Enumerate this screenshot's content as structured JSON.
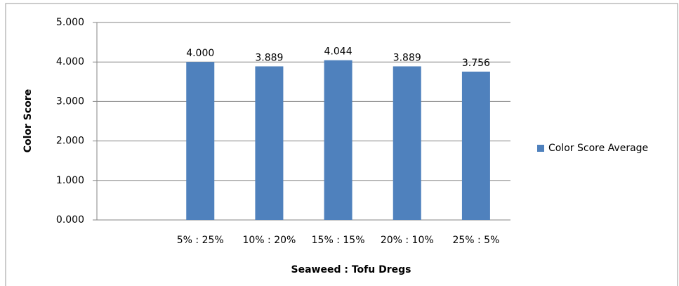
{
  "chart_data": {
    "type": "bar",
    "categories": [
      null,
      "5% : 25%",
      "10% : 20%",
      "15% : 15%",
      "20% : 10%",
      "25% : 5%"
    ],
    "series": [
      {
        "name": "Color Score Average",
        "color": "#4f81bd",
        "values": [
          null,
          4.0,
          3.889,
          4.044,
          3.889,
          3.756
        ],
        "value_labels": [
          null,
          "4.000",
          "3.889",
          "4.044",
          "3.889",
          "3.756"
        ]
      }
    ],
    "ylim": [
      0,
      5
    ],
    "yticks": [
      {
        "value": 0,
        "label": "0.000"
      },
      {
        "value": 1,
        "label": "1.000"
      },
      {
        "value": 2,
        "label": "2.000"
      },
      {
        "value": 3,
        "label": "3.000"
      },
      {
        "value": 4,
        "label": "4.000"
      },
      {
        "value": 5,
        "label": "5.000"
      }
    ],
    "grid": true,
    "y_label": "Color Score",
    "x_label": "Seaweed : Tofu Dregs",
    "legend": "right"
  }
}
